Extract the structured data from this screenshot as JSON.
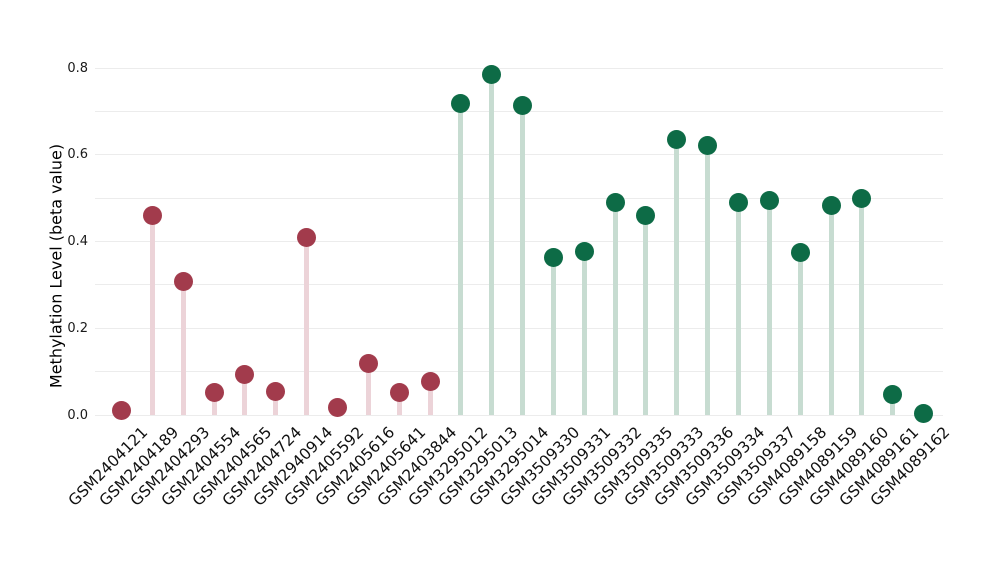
{
  "figure": {
    "background_color": "#ffffff"
  },
  "chart_data": {
    "type": "lollipop",
    "title": "",
    "xlabel": "",
    "ylabel": "Methylation Level (beta value)",
    "ylim": [
      0.0,
      0.85
    ],
    "yticks": [
      0.0,
      0.2,
      0.4,
      0.6,
      0.8
    ],
    "grid": {
      "horizontal": true,
      "step": 0.1,
      "color": "#ececec"
    },
    "legend": "none",
    "groups": [
      {
        "name": "maroon-group",
        "marker_color": "#a23b4c",
        "stem_color": "#ecd3d8"
      },
      {
        "name": "green-group",
        "marker_color": "#0d6b46",
        "stem_color": "#c7dcd1"
      }
    ],
    "points": [
      {
        "sample": "GSM2404121",
        "value": 0.01,
        "group": 0
      },
      {
        "sample": "GSM2404189",
        "value": 0.46,
        "group": 0
      },
      {
        "sample": "GSM2404293",
        "value": 0.307,
        "group": 0
      },
      {
        "sample": "GSM2404554",
        "value": 0.053,
        "group": 0
      },
      {
        "sample": "GSM2404565",
        "value": 0.093,
        "group": 0
      },
      {
        "sample": "GSM2404724",
        "value": 0.054,
        "group": 0
      },
      {
        "sample": "GSM2940914",
        "value": 0.41,
        "group": 0
      },
      {
        "sample": "GSM2405592",
        "value": 0.018,
        "group": 0
      },
      {
        "sample": "GSM2405616",
        "value": 0.119,
        "group": 0
      },
      {
        "sample": "GSM2405641",
        "value": 0.052,
        "group": 0
      },
      {
        "sample": "GSM2403844",
        "value": 0.077,
        "group": 0
      },
      {
        "sample": "GSM3295012",
        "value": 0.719,
        "group": 1
      },
      {
        "sample": "GSM3295013",
        "value": 0.786,
        "group": 1
      },
      {
        "sample": "GSM3295014",
        "value": 0.713,
        "group": 1
      },
      {
        "sample": "GSM3509330",
        "value": 0.363,
        "group": 1
      },
      {
        "sample": "GSM3509331",
        "value": 0.377,
        "group": 1
      },
      {
        "sample": "GSM3509332",
        "value": 0.49,
        "group": 1
      },
      {
        "sample": "GSM3509335",
        "value": 0.46,
        "group": 1
      },
      {
        "sample": "GSM3509333",
        "value": 0.636,
        "group": 1
      },
      {
        "sample": "GSM3509336",
        "value": 0.622,
        "group": 1
      },
      {
        "sample": "GSM3509334",
        "value": 0.491,
        "group": 1
      },
      {
        "sample": "GSM3509337",
        "value": 0.495,
        "group": 1
      },
      {
        "sample": "GSM4089158",
        "value": 0.375,
        "group": 1
      },
      {
        "sample": "GSM4089159",
        "value": 0.482,
        "group": 1
      },
      {
        "sample": "GSM4089160",
        "value": 0.498,
        "group": 1
      },
      {
        "sample": "GSM4089161",
        "value": 0.048,
        "group": 1
      },
      {
        "sample": "GSM4089162",
        "value": 0.004,
        "group": 1
      }
    ]
  }
}
